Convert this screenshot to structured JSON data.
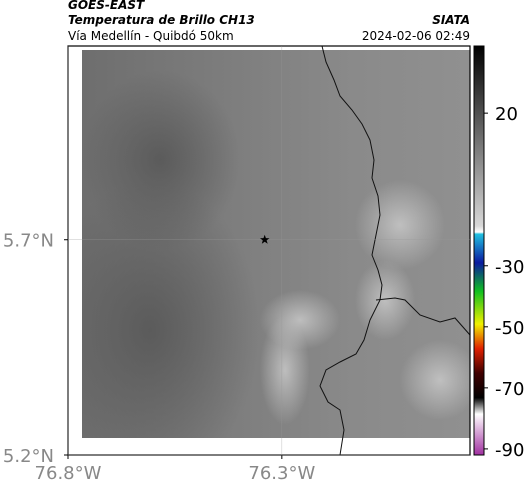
{
  "header": {
    "satellite": "GOES-EAST",
    "product": "Temperatura de Brillo CH13",
    "agency": "SIATA",
    "region": "Vía Medellín - Quibdó 50km",
    "timestamp": "2024-02-06 02:49"
  },
  "map": {
    "xlim": [
      -76.8,
      -75.86
    ],
    "ylim": [
      5.2,
      6.15
    ],
    "xticks": [
      {
        "value": -76.8,
        "label": "76.8°W"
      },
      {
        "value": -76.3,
        "label": "76.3°W"
      }
    ],
    "yticks": [
      {
        "value": 5.7,
        "label": "5.7°N"
      },
      {
        "value": 5.2,
        "label": "5.2°N"
      }
    ],
    "marker": {
      "lon": -76.34,
      "lat": 5.7
    }
  },
  "colorbar": {
    "lim": [
      -92,
      42
    ],
    "ticks": [
      20,
      -30,
      -50,
      -70,
      -90
    ]
  }
}
